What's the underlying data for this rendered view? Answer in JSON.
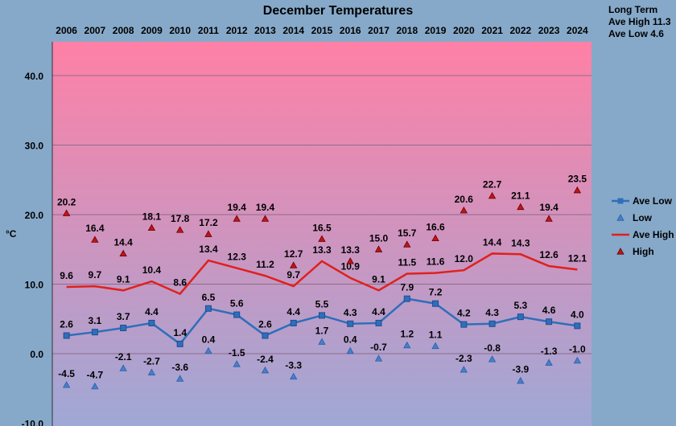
{
  "chart_data": {
    "type": "line",
    "title": "December Temperatures",
    "ylabel": "°C",
    "xlabel": "",
    "ylim": [
      -10,
      45
    ],
    "yticks": [
      "-10.0",
      "0.0",
      "10.0",
      "20.0",
      "30.0",
      "40.0"
    ],
    "ytick_values": [
      -10,
      0,
      10,
      20,
      30,
      40
    ],
    "categories": [
      "2006",
      "2007",
      "2008",
      "2009",
      "2010",
      "2011",
      "2012",
      "2013",
      "2014",
      "2015",
      "2016",
      "2017",
      "2018",
      "2019",
      "2020",
      "2021",
      "2022",
      "2023",
      "2024"
    ],
    "series": [
      {
        "name": "Ave Low",
        "color": "#2F6EBA",
        "marker": "square",
        "line": true,
        "values": [
          2.6,
          3.1,
          3.7,
          4.4,
          1.4,
          6.5,
          5.6,
          2.6,
          4.4,
          5.5,
          4.3,
          4.4,
          7.9,
          7.2,
          4.2,
          4.3,
          5.3,
          4.6,
          4.0
        ],
        "labels": [
          "2.6",
          "3.1",
          "3.7",
          "4.4",
          "1.4",
          "6.5",
          "5.6",
          "2.6",
          "4.4",
          "5.5",
          "4.3",
          "4.4",
          "7.9",
          "7.2",
          "4.2",
          "4.3",
          "5.3",
          "4.6",
          "4.0"
        ]
      },
      {
        "name": "Low",
        "color": "#4A7EC8",
        "marker": "triangle",
        "line": false,
        "values": [
          -4.5,
          -4.7,
          -2.1,
          -2.7,
          -3.6,
          0.4,
          -1.5,
          -2.4,
          -3.3,
          1.7,
          0.4,
          -0.7,
          1.2,
          1.1,
          -2.3,
          -0.8,
          -3.9,
          -1.3,
          -1.0
        ],
        "labels": [
          "-4.5",
          "-4.7",
          "-2.1",
          "-2.7",
          "-3.6",
          "0.4",
          "-1.5",
          "-2.4",
          "-3.3",
          "1.7",
          "0.4",
          "-0.7",
          "1.2",
          "1.1",
          "-2.3",
          "-0.8",
          "-3.9",
          "-1.3",
          "-1.0"
        ]
      },
      {
        "name": "Ave High",
        "color": "#E0201E",
        "marker": "none",
        "line": true,
        "values": [
          9.6,
          9.7,
          9.1,
          10.4,
          8.6,
          13.4,
          12.3,
          11.2,
          9.7,
          13.3,
          10.9,
          9.1,
          11.5,
          11.6,
          12.0,
          14.4,
          14.3,
          12.6,
          12.1
        ],
        "labels": [
          "9.6",
          "9.7",
          "9.1",
          "10.4",
          "8.6",
          "13.4",
          "12.3",
          "11.2",
          "9.7",
          "13.3",
          "10.9",
          "9.1",
          "11.5",
          "11.6",
          "12.0",
          "14.4",
          "14.3",
          "12.6",
          "12.1"
        ]
      },
      {
        "name": "High",
        "color": "#C0141A",
        "marker": "triangle",
        "line": false,
        "values": [
          20.2,
          16.4,
          14.4,
          18.1,
          17.8,
          17.2,
          19.4,
          19.4,
          12.7,
          16.5,
          13.3,
          15.0,
          15.7,
          16.6,
          20.6,
          22.7,
          21.1,
          19.4,
          23.5
        ],
        "labels": [
          "20.2",
          "16.4",
          "14.4",
          "18.1",
          "17.8",
          "17.2",
          "19.4",
          "19.4",
          "12.7",
          "16.5",
          "13.3",
          "15.0",
          "15.7",
          "16.6",
          "20.6",
          "22.7",
          "21.1",
          "19.4",
          "23.5"
        ]
      }
    ],
    "legend_position": "right",
    "xaxis_position": "top",
    "grid": true,
    "plot_gradient": {
      "top": "#FF80A6",
      "bottom": "#9FA8D6"
    }
  },
  "long_term": {
    "line1": "Long Term",
    "line2": "Ave High 11.3",
    "line3": "Ave Low 4.6"
  }
}
